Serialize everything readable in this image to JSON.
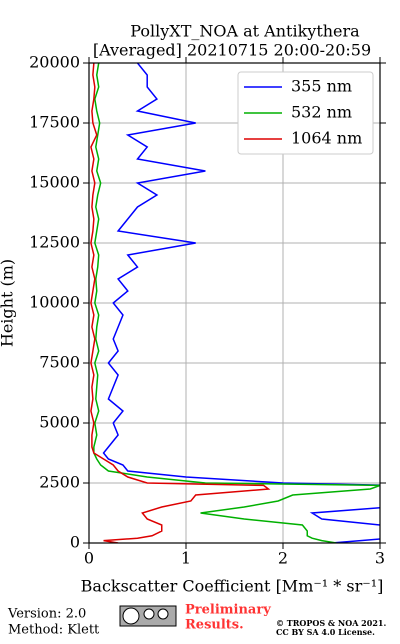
{
  "chart_data": {
    "type": "profile",
    "title": "PollyXT_NOA at Antikythera",
    "subtitle": "[Averaged] 20210715 20:00-20:59",
    "xlabel": "Backscatter Coefficient [Mm⁻¹ * sr⁻¹]",
    "ylabel": "Height (m)",
    "heights": [
      0,
      100,
      200,
      300,
      500,
      750,
      1000,
      1250,
      1500,
      1750,
      2000,
      2250,
      2400,
      2500,
      2750,
      3000,
      3250,
      3500,
      3750,
      4000,
      4500,
      5000,
      5500,
      6000,
      6500,
      7000,
      7500,
      8000,
      8500,
      9000,
      9500,
      10000,
      10500,
      11000,
      11500,
      12000,
      12500,
      13000,
      13500,
      14000,
      14500,
      15000,
      15500,
      16000,
      16500,
      17000,
      17500,
      18000,
      18500,
      19000,
      19500,
      20000
    ],
    "series": [
      {
        "name": "355 nm",
        "color": "#0000ff",
        "values": [
          2.5,
          2.8,
          3.1,
          3.1,
          3.1,
          3.0,
          2.4,
          2.3,
          3.1,
          3.1,
          3.1,
          3.1,
          3.1,
          2.0,
          1.0,
          0.4,
          0.35,
          0.2,
          0.15,
          0.2,
          0.3,
          0.25,
          0.35,
          0.2,
          0.25,
          0.3,
          0.2,
          0.3,
          0.25,
          0.3,
          0.35,
          0.25,
          0.4,
          0.3,
          0.5,
          0.4,
          1.1,
          0.3,
          0.4,
          0.5,
          0.7,
          0.5,
          1.2,
          0.5,
          0.6,
          0.4,
          1.1,
          0.5,
          0.7,
          0.6,
          0.6,
          0.5
        ]
      },
      {
        "name": "532 nm",
        "color": "#00b000",
        "values": [
          2.55,
          2.4,
          2.3,
          2.25,
          2.25,
          2.2,
          1.6,
          1.15,
          1.6,
          1.95,
          2.1,
          2.9,
          3.0,
          1.2,
          0.6,
          0.2,
          0.12,
          0.08,
          0.05,
          0.05,
          0.08,
          0.06,
          0.1,
          0.07,
          0.08,
          0.09,
          0.06,
          0.1,
          0.07,
          0.08,
          0.1,
          0.06,
          0.08,
          0.07,
          0.09,
          0.1,
          0.06,
          0.08,
          0.1,
          0.07,
          0.09,
          0.12,
          0.08,
          0.1,
          0.07,
          0.09,
          0.11,
          0.08,
          0.06,
          0.1,
          0.08,
          0.1
        ]
      },
      {
        "name": "1064 nm",
        "color": "#dd0000",
        "values": [
          0.3,
          0.15,
          0.5,
          0.65,
          0.75,
          0.75,
          0.6,
          0.55,
          0.75,
          1.05,
          1.1,
          1.85,
          1.8,
          0.6,
          0.4,
          0.3,
          0.25,
          0.15,
          0.05,
          0.03,
          0.03,
          0.05,
          0.02,
          0.04,
          0.03,
          0.05,
          0.02,
          0.04,
          0.06,
          0.03,
          0.05,
          0.02,
          0.04,
          0.06,
          0.03,
          0.05,
          0.02,
          0.04,
          0.05,
          0.03,
          0.04,
          0.06,
          0.03,
          0.05,
          0.02,
          0.08,
          0.04,
          0.03,
          0.05,
          0.06,
          0.04,
          0.05
        ]
      }
    ],
    "xlim": [
      0,
      3
    ],
    "xticks": [
      0,
      1,
      2,
      3
    ],
    "ylim": [
      0,
      20000
    ],
    "yticks": [
      0,
      2500,
      5000,
      7500,
      10000,
      12500,
      15000,
      17500,
      20000
    ],
    "grid": true,
    "legend": "upper right"
  },
  "footer": {
    "version": "Version: 2.0",
    "method": "Method: Klett",
    "preliminary": "Preliminary",
    "results": "Results.",
    "copyright": "© TROPOS & NOA 2021.",
    "license": "CC BY SA 4.0 License."
  }
}
